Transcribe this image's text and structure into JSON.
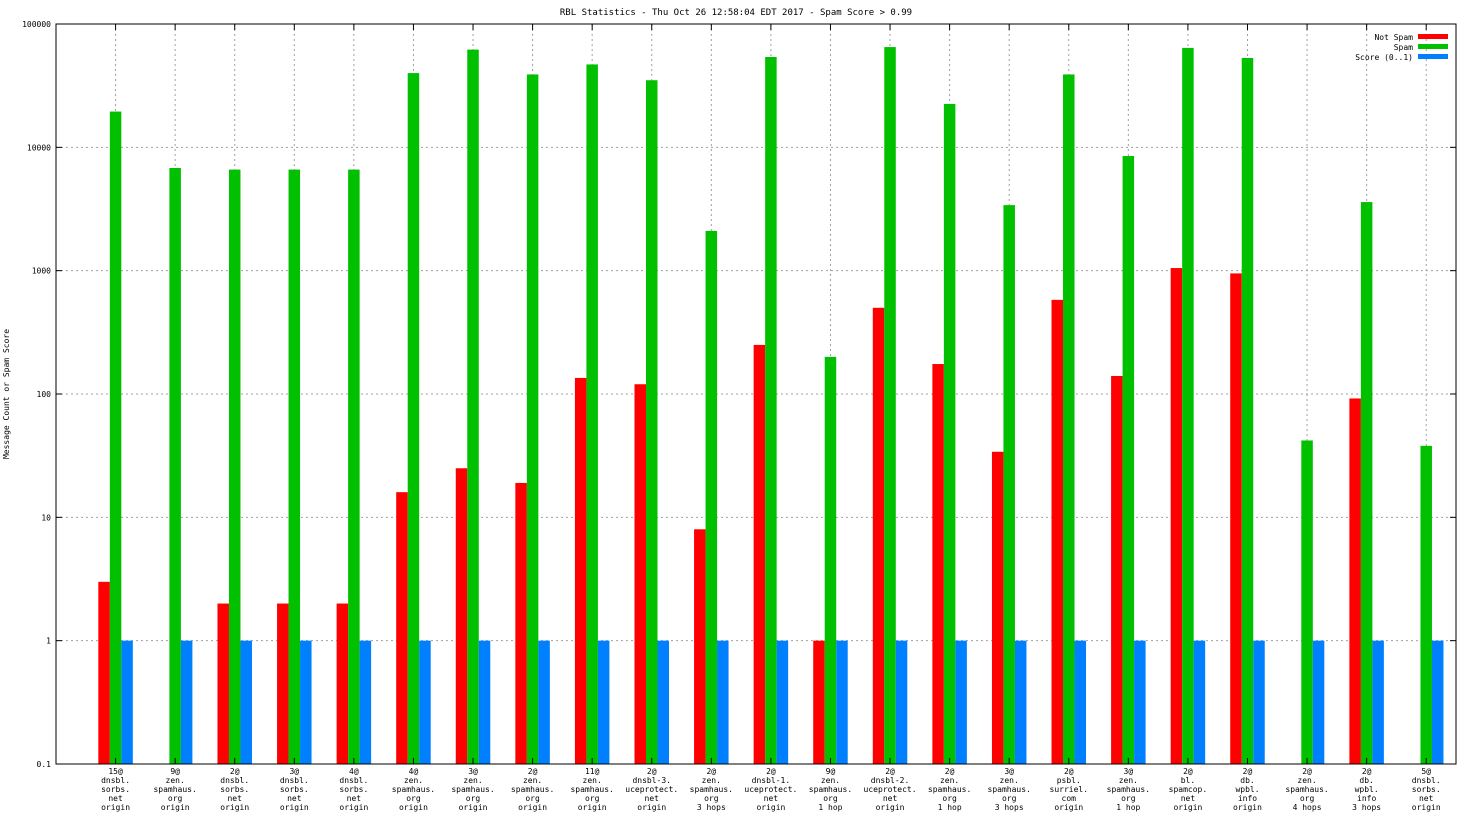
{
  "chart_data": {
    "type": "bar",
    "title": "RBL Statistics - Thu Oct 26 12:58:04 EDT 2017 - Spam Score > 0.99",
    "xlabel": "",
    "ylabel": "Message Count or Spam Score",
    "yscale": "log",
    "ylim": [
      0.1,
      100000
    ],
    "yticks": [
      {
        "value": 0.1,
        "label": "0.1"
      },
      {
        "value": 1,
        "label": "1"
      },
      {
        "value": 10,
        "label": "10"
      },
      {
        "value": 100,
        "label": "100"
      },
      {
        "value": 1000,
        "label": "1000"
      },
      {
        "value": 10000,
        "label": "10000"
      },
      {
        "value": 100000,
        "label": "100000"
      }
    ],
    "grid": true,
    "legend_position": "top-right",
    "categories": [
      [
        "15@",
        "dnsbl.",
        "sorbs.",
        "net",
        "origin"
      ],
      [
        "9@",
        "zen.",
        "spamhaus.",
        "org",
        "origin"
      ],
      [
        "2@",
        "dnsbl.",
        "sorbs.",
        "net",
        "origin"
      ],
      [
        "3@",
        "dnsbl.",
        "sorbs.",
        "net",
        "origin"
      ],
      [
        "4@",
        "dnsbl.",
        "sorbs.",
        "net",
        "origin"
      ],
      [
        "4@",
        "zen.",
        "spamhaus.",
        "org",
        "origin"
      ],
      [
        "3@",
        "zen.",
        "spamhaus.",
        "org",
        "origin"
      ],
      [
        "2@",
        "zen.",
        "spamhaus.",
        "org",
        "origin"
      ],
      [
        "11@",
        "zen.",
        "spamhaus.",
        "org",
        "origin"
      ],
      [
        "2@",
        "dnsbl-3.",
        "uceprotect.",
        "net",
        "origin"
      ],
      [
        "2@",
        "zen.",
        "spamhaus.",
        "org",
        "3 hops"
      ],
      [
        "2@",
        "dnsbl-1.",
        "uceprotect.",
        "net",
        "origin"
      ],
      [
        "9@",
        "zen.",
        "spamhaus.",
        "org",
        "1 hop"
      ],
      [
        "2@",
        "dnsbl-2.",
        "uceprotect.",
        "net",
        "origin"
      ],
      [
        "2@",
        "zen.",
        "spamhaus.",
        "org",
        "1 hop"
      ],
      [
        "3@",
        "zen.",
        "spamhaus.",
        "org",
        "3 hops"
      ],
      [
        "2@",
        "psbl.",
        "surriel.",
        "com",
        "origin"
      ],
      [
        "3@",
        "zen.",
        "spamhaus.",
        "org",
        "1 hop"
      ],
      [
        "2@",
        "bl.",
        "spamcop.",
        "net",
        "origin"
      ],
      [
        "2@",
        "db.",
        "wpbl.",
        "info",
        "origin"
      ],
      [
        "2@",
        "zen.",
        "spamhaus.",
        "org",
        "4 hops"
      ],
      [
        "2@",
        "db.",
        "wpbl.",
        "info",
        "3 hops"
      ],
      [
        "5@",
        "dnsbl.",
        "sorbs.",
        "net",
        "origin"
      ]
    ],
    "series": [
      {
        "name": "Not Spam",
        "color": "#ff0000",
        "values": [
          3,
          null,
          2,
          2,
          2,
          16,
          25,
          19,
          135,
          120,
          8,
          250,
          1,
          500,
          175,
          34,
          580,
          140,
          1050,
          950,
          null,
          92,
          null
        ]
      },
      {
        "name": "Spam",
        "color": "#00c000",
        "values": [
          19500,
          6800,
          6600,
          6600,
          6600,
          40000,
          62000,
          39000,
          47000,
          35000,
          2100,
          54000,
          200,
          65000,
          22500,
          3400,
          39000,
          8500,
          64000,
          53000,
          42,
          3600,
          38
        ]
      },
      {
        "name": "Score (0..1)",
        "color": "#0080ff",
        "values": [
          1,
          1,
          1,
          1,
          1,
          1,
          1,
          1,
          1,
          1,
          1,
          1,
          1,
          1,
          1,
          1,
          1,
          1,
          1,
          1,
          1,
          1,
          1
        ]
      }
    ]
  }
}
